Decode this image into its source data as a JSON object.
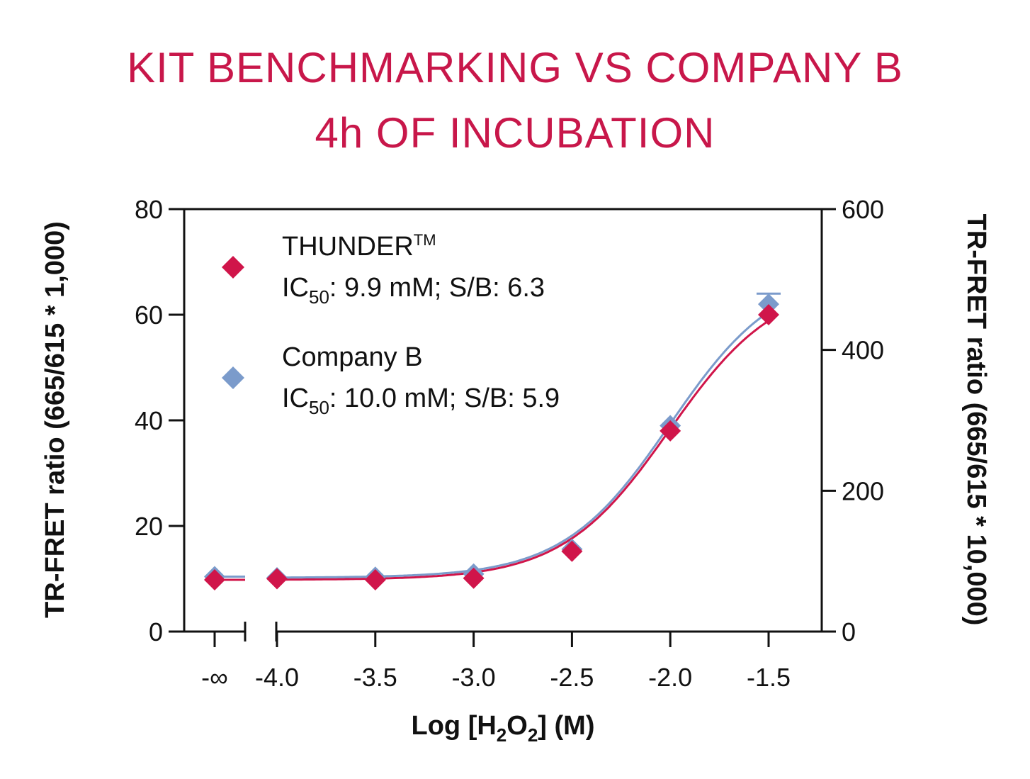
{
  "chart_data": {
    "type": "scatter",
    "title": [
      "KIT BENCHMARKING VS COMPANY B",
      "4h OF INCUBATION"
    ],
    "xlabel": "Log [H2O2] (M)",
    "xlabel_parts": {
      "pre": "Log [H",
      "sub1": "2",
      "mid": "O",
      "sub2": "2",
      "post": "] (M)"
    },
    "ylabel_left": "TR-FRET ratio (665/615 * 1,000)",
    "ylabel_right": "TR-FRET ratio (665/615 * 10,000)",
    "ylim_left": [
      0,
      80
    ],
    "ylim_right": [
      0,
      600
    ],
    "xlim": [
      -4.0,
      -1.5
    ],
    "x_ticks": [
      "-∞",
      "-4.0",
      "-3.5",
      "-3.0",
      "-2.5",
      "-2.0",
      "-1.5"
    ],
    "x_tick_values": [
      null,
      -4.0,
      -3.5,
      -3.0,
      -2.5,
      -2.0,
      -1.5
    ],
    "y_ticks_left": [
      0,
      20,
      40,
      60,
      80
    ],
    "y_ticks_right": [
      0,
      200,
      400,
      600
    ],
    "axis_break": true,
    "legend_position": "top-left",
    "grid": false,
    "series": [
      {
        "name": "THUNDER™",
        "legend_line1": "THUNDER",
        "legend_tm": "TM",
        "legend_ic_pre": "IC",
        "legend_ic_sub": "50",
        "legend_ic_post": ": 9.9 mM; S/B: 6.3",
        "color": "#d0154a",
        "marker": "diamond",
        "baseline": 9.8,
        "points": [
          {
            "x": -4.0,
            "y": 10.0
          },
          {
            "x": -3.5,
            "y": 9.8
          },
          {
            "x": -3.0,
            "y": 10.1
          },
          {
            "x": -2.5,
            "y": 15.2
          },
          {
            "x": -2.0,
            "y": 38.0
          },
          {
            "x": -1.5,
            "y": 60.0
          }
        ],
        "fit": {
          "bottom": 9.8,
          "top": 66.5,
          "log_ic50": -2.004,
          "hill": 1.6
        }
      },
      {
        "name": "Company B",
        "legend_line1": "Company B",
        "legend_tm": "",
        "legend_ic_pre": "IC",
        "legend_ic_sub": "50",
        "legend_ic_post": ": 10.0 mM; S/B: 5.9",
        "color": "#7b9bcb",
        "marker": "diamond",
        "baseline": 10.4,
        "points": [
          {
            "x": -4.0,
            "y": 10.2
          },
          {
            "x": -3.5,
            "y": 10.3
          },
          {
            "x": -3.0,
            "y": 10.9
          },
          {
            "x": -2.5,
            "y": 15.6
          },
          {
            "x": -2.0,
            "y": 39.0
          },
          {
            "x": -1.5,
            "y": 62.0,
            "err": 2.0
          }
        ],
        "fit": {
          "bottom": 10.2,
          "top": 68.5,
          "log_ic50": -2.0,
          "hill": 1.6
        }
      }
    ]
  }
}
